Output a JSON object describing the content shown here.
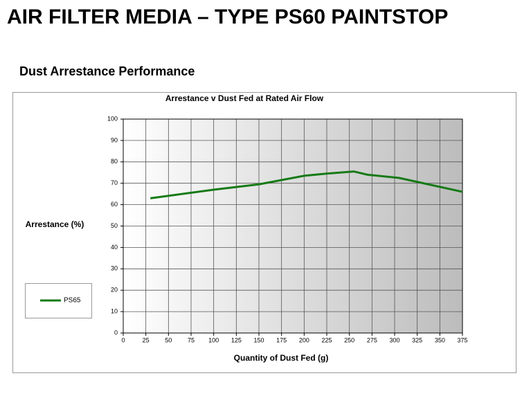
{
  "page_title": "AIR FILTER MEDIA – TYPE PS60 PAINTSTOP",
  "section_title": "Dust Arrestance Performance",
  "chart_data": {
    "type": "line",
    "title": "Arrestance v Dust Fed at Rated Air Flow",
    "x_label": "Quantity of Dust Fed (g)",
    "y_label": "Arrestance (%)",
    "x": [
      30,
      100,
      150,
      200,
      225,
      255,
      270,
      305,
      375
    ],
    "series": [
      {
        "name": "PS65",
        "color": "#167a16",
        "values": [
          63,
          67,
          69.5,
          73.5,
          74.5,
          75.5,
          74,
          72.5,
          66
        ]
      }
    ],
    "xlim": [
      0,
      375
    ],
    "xticks": [
      0,
      25,
      50,
      75,
      100,
      125,
      150,
      175,
      200,
      225,
      250,
      275,
      300,
      325,
      350,
      375
    ],
    "ylim": [
      0,
      100
    ],
    "yticks": [
      0,
      10,
      20,
      30,
      40,
      50,
      60,
      70,
      80,
      90,
      100
    ],
    "grid": true,
    "legend": "left"
  }
}
